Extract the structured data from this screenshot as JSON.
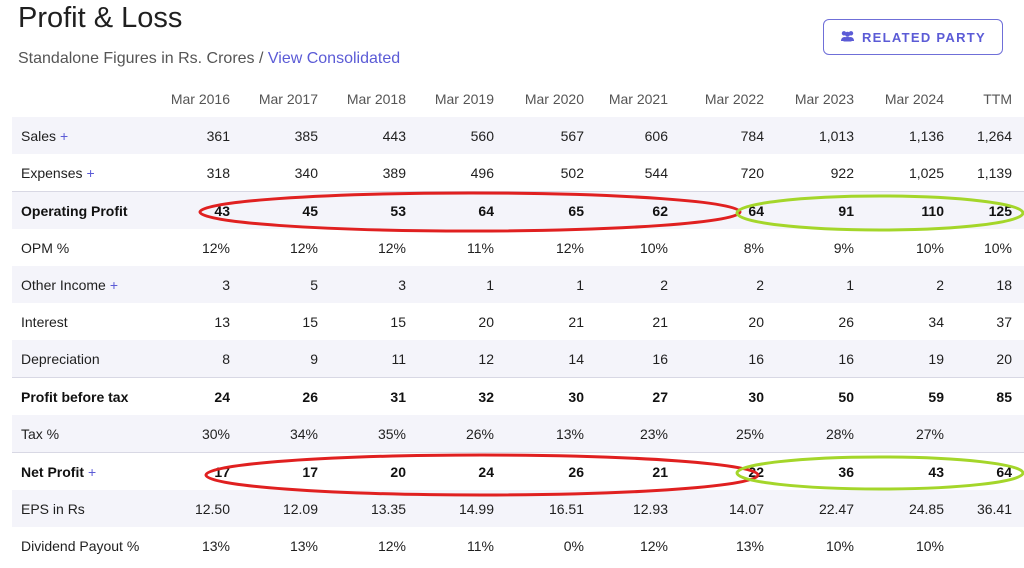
{
  "header": {
    "title": "Profit & Loss",
    "subtitle_text": "Standalone Figures in Rs. Crores / ",
    "subtitle_link": "View Consolidated",
    "related_party_label": "RELATED PARTY"
  },
  "table": {
    "columns": [
      "Mar 2016",
      "Mar 2017",
      "Mar 2018",
      "Mar 2019",
      "Mar 2020",
      "Mar 2021",
      "Mar 2022",
      "Mar 2023",
      "Mar 2024",
      "TTM"
    ],
    "rows": [
      {
        "label": "Sales",
        "expandable": true,
        "bold": false,
        "values": [
          "361",
          "385",
          "443",
          "560",
          "567",
          "606",
          "784",
          "1,013",
          "1,136",
          "1,264"
        ]
      },
      {
        "label": "Expenses",
        "expandable": true,
        "bold": false,
        "values": [
          "318",
          "340",
          "389",
          "496",
          "502",
          "544",
          "720",
          "922",
          "1,025",
          "1,139"
        ]
      },
      {
        "label": "Operating Profit",
        "expandable": false,
        "bold": true,
        "values": [
          "43",
          "45",
          "53",
          "64",
          "65",
          "62",
          "64",
          "91",
          "110",
          "125"
        ]
      },
      {
        "label": "OPM %",
        "expandable": false,
        "bold": false,
        "values": [
          "12%",
          "12%",
          "12%",
          "11%",
          "12%",
          "10%",
          "8%",
          "9%",
          "10%",
          "10%"
        ]
      },
      {
        "label": "Other Income",
        "expandable": true,
        "bold": false,
        "values": [
          "3",
          "5",
          "3",
          "1",
          "1",
          "2",
          "2",
          "1",
          "2",
          "18"
        ]
      },
      {
        "label": "Interest",
        "expandable": false,
        "bold": false,
        "values": [
          "13",
          "15",
          "15",
          "20",
          "21",
          "21",
          "20",
          "26",
          "34",
          "37"
        ]
      },
      {
        "label": "Depreciation",
        "expandable": false,
        "bold": false,
        "values": [
          "8",
          "9",
          "11",
          "12",
          "14",
          "16",
          "16",
          "16",
          "19",
          "20"
        ]
      },
      {
        "label": "Profit before tax",
        "expandable": false,
        "bold": true,
        "values": [
          "24",
          "26",
          "31",
          "32",
          "30",
          "27",
          "30",
          "50",
          "59",
          "85"
        ]
      },
      {
        "label": "Tax %",
        "expandable": false,
        "bold": false,
        "values": [
          "30%",
          "34%",
          "35%",
          "26%",
          "13%",
          "23%",
          "25%",
          "28%",
          "27%",
          ""
        ]
      },
      {
        "label": "Net Profit",
        "expandable": true,
        "bold": true,
        "values": [
          "17",
          "17",
          "20",
          "24",
          "26",
          "21",
          "22",
          "36",
          "43",
          "64"
        ]
      },
      {
        "label": "EPS in Rs",
        "expandable": false,
        "bold": false,
        "values": [
          "12.50",
          "12.09",
          "13.35",
          "14.99",
          "16.51",
          "12.93",
          "14.07",
          "22.47",
          "24.85",
          "36.41"
        ]
      },
      {
        "label": "Dividend Payout %",
        "expandable": false,
        "bold": false,
        "values": [
          "13%",
          "13%",
          "12%",
          "11%",
          "0%",
          "12%",
          "13%",
          "10%",
          "10%",
          ""
        ]
      }
    ]
  },
  "annotations": {
    "red_color": "#e02020",
    "green_color": "#a4d62a"
  }
}
